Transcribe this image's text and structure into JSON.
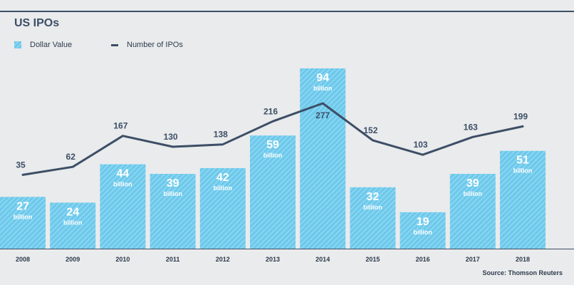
{
  "title": "US IPOs",
  "legend": {
    "bar_label": "Dollar Value",
    "line_label": "Number of IPOs"
  },
  "source": "Source: Thomson Reuters",
  "colors": {
    "bar": "#6cc8ea",
    "bar_stripe": "#8ad6f2",
    "line": "#3d4e66",
    "axis_text": "#2e3a4c",
    "background": "#e9ebec"
  },
  "chart_data": {
    "type": "bar",
    "title": "US IPOs",
    "categories": [
      "2008",
      "2009",
      "2010",
      "2011",
      "2012",
      "2013",
      "2014",
      "2015",
      "2016",
      "2017",
      "2018"
    ],
    "series": [
      {
        "name": "Dollar Value",
        "type": "bar",
        "values": [
          27,
          24,
          44,
          39,
          42,
          59,
          94,
          32,
          19,
          39,
          51
        ],
        "unit_label": "billion"
      },
      {
        "name": "Number of IPOs",
        "type": "line",
        "values": [
          35,
          62,
          167,
          130,
          138,
          216,
          277,
          152,
          103,
          163,
          199
        ]
      }
    ],
    "legend": "top-left",
    "grid": false
  }
}
